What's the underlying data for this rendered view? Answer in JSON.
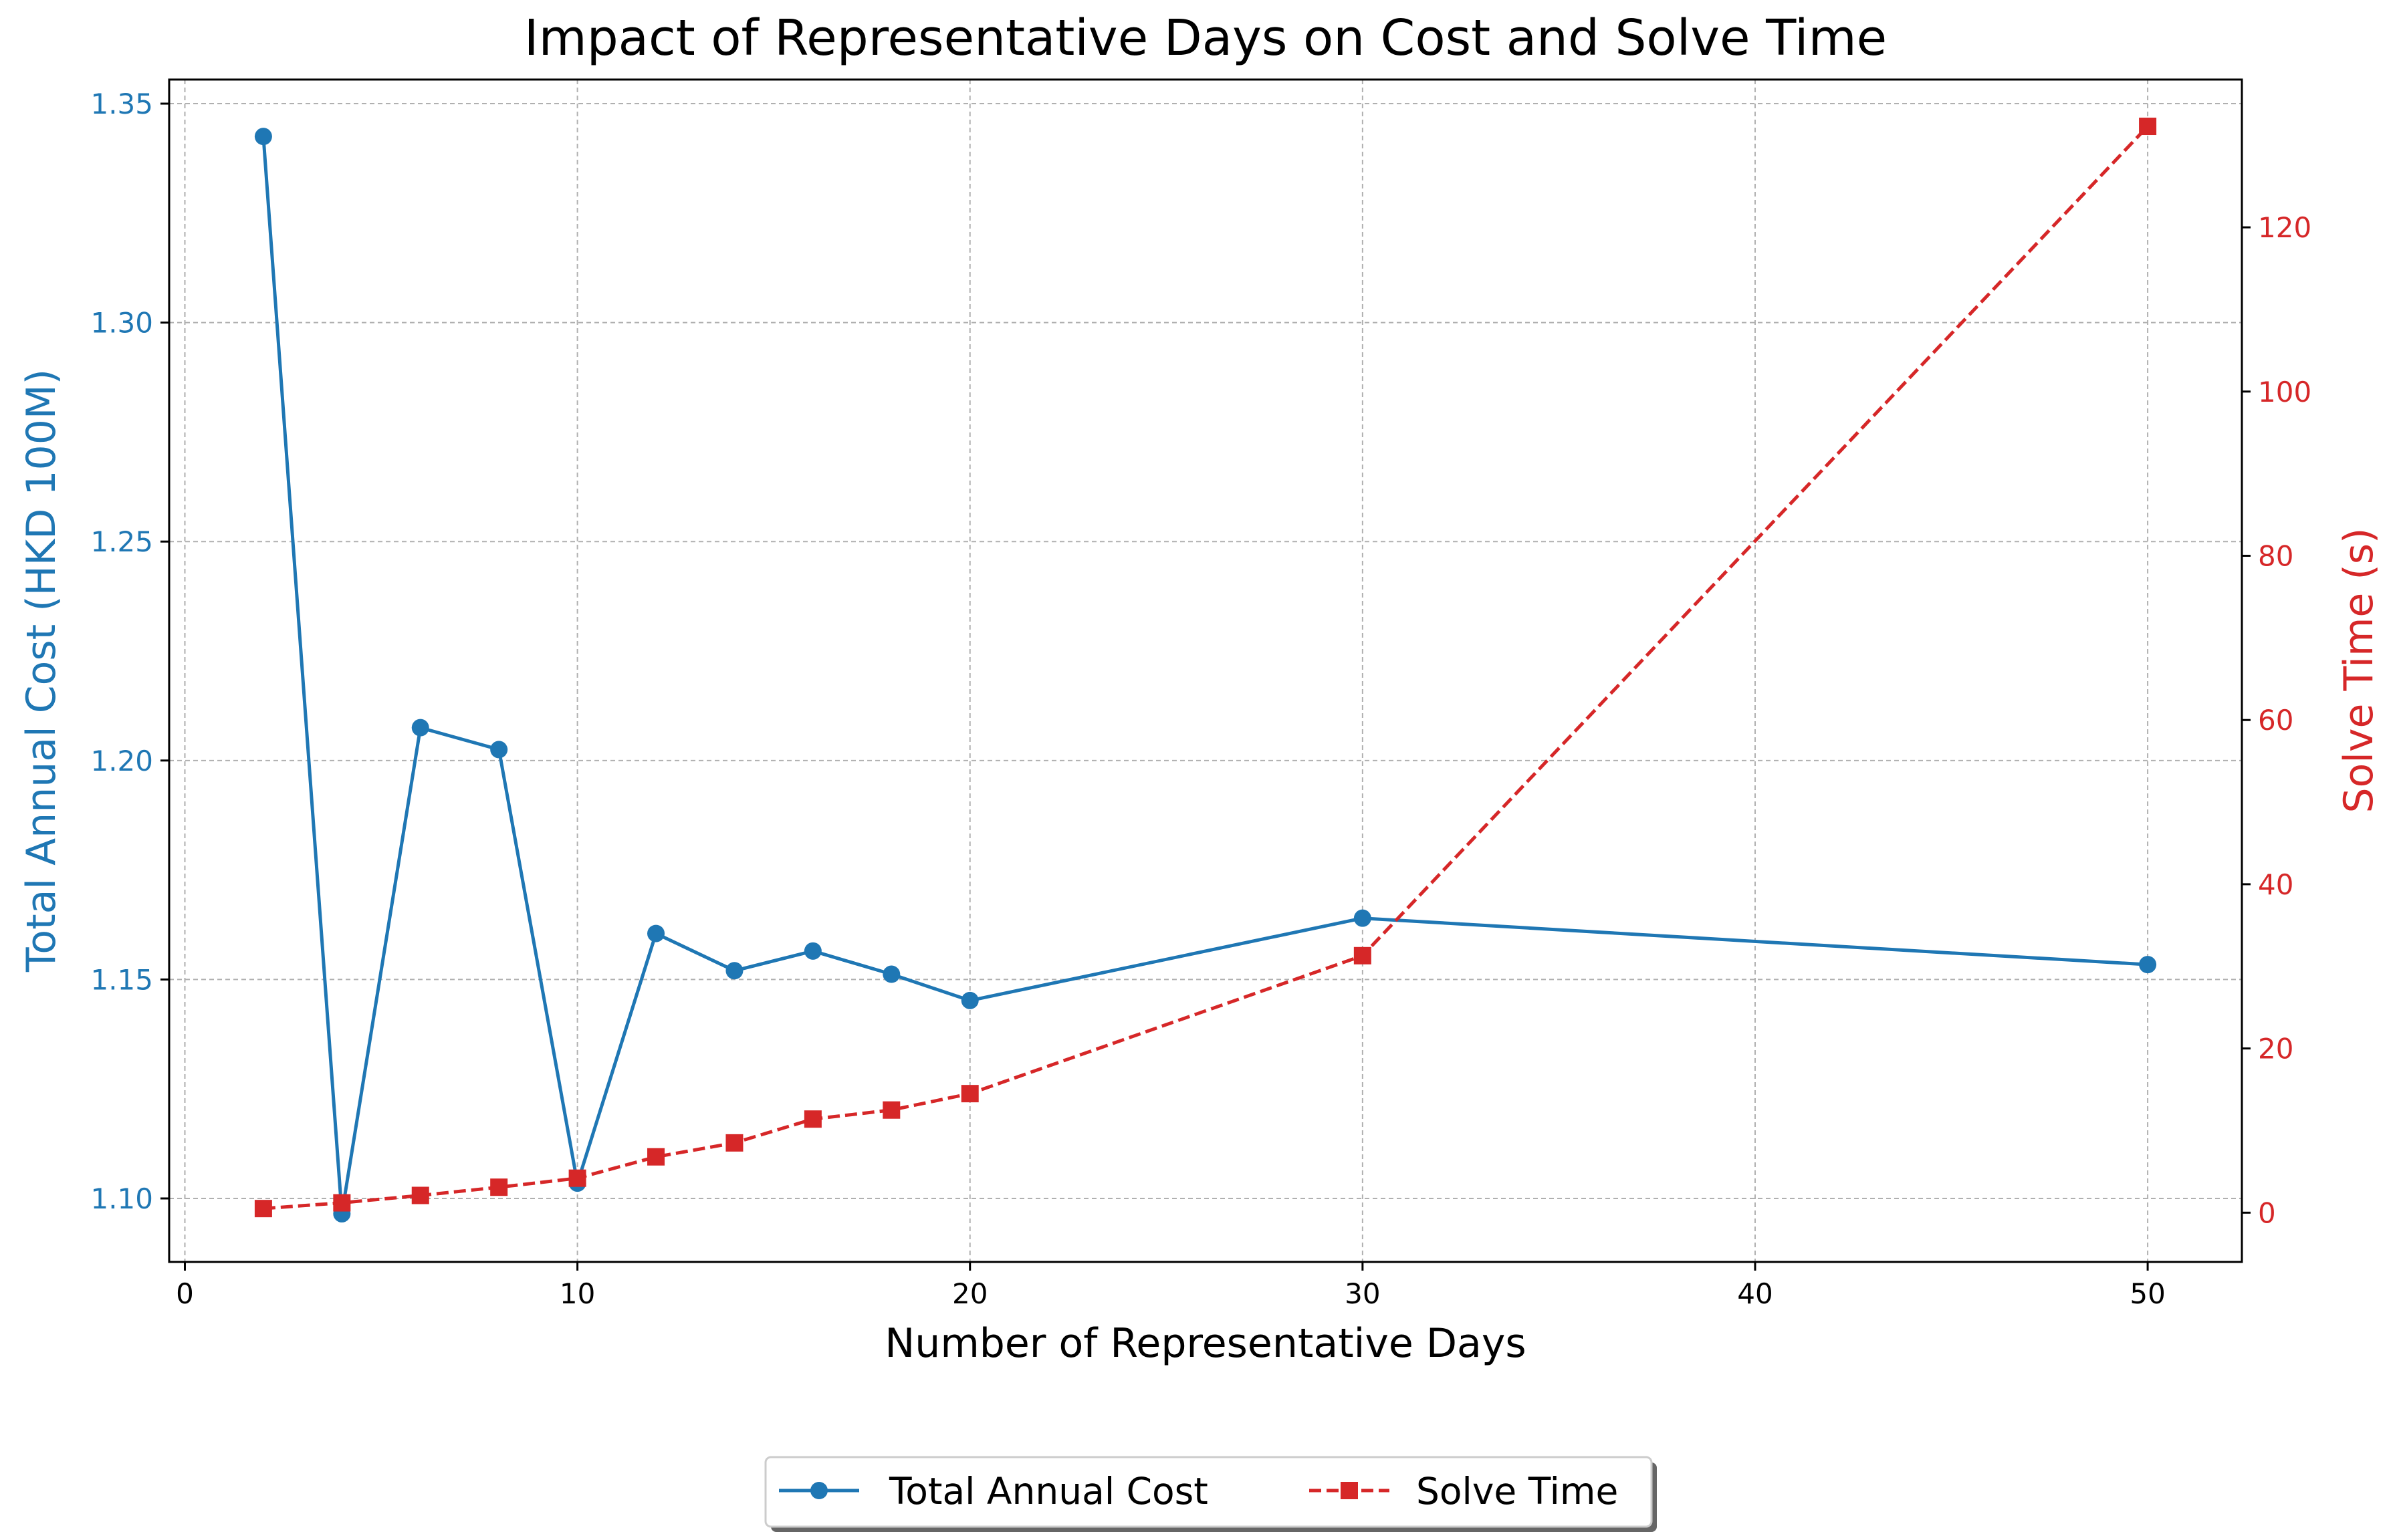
{
  "chart_data": {
    "type": "line",
    "title": "Impact of Representative Days on Cost and Solve Time",
    "xlabel": "Number of Representative Days",
    "ylabel_left": "Total Annual Cost (HKD 100M)",
    "ylabel_right": "Solve Time (s)",
    "xlim": [
      -0.4,
      52.4
    ],
    "ylim_left": [
      1.0855,
      1.3555
    ],
    "ylim_right": [
      -6,
      138
    ],
    "xticks": [
      0,
      10,
      20,
      30,
      40,
      50
    ],
    "yticks_left": [
      1.1,
      1.15,
      1.2,
      1.25,
      1.3,
      1.35
    ],
    "yticks_right": [
      0,
      20,
      40,
      60,
      80,
      100,
      120
    ],
    "grid": true,
    "legend_position": "bottom-center",
    "colors": {
      "cost": "#1f77b4",
      "time": "#d62728",
      "grid": "#b0b0b0"
    },
    "series": [
      {
        "name": "Total Annual Cost",
        "axis": "left",
        "marker": "circle",
        "linestyle": "solid",
        "x": [
          2,
          4,
          6,
          8,
          10,
          12,
          14,
          16,
          18,
          20,
          30,
          50
        ],
        "values": [
          1.3425,
          1.0965,
          1.2075,
          1.2025,
          1.1035,
          1.1605,
          1.152,
          1.1565,
          1.1512,
          1.1452,
          1.164,
          1.1534
        ]
      },
      {
        "name": "Solve Time",
        "axis": "right",
        "marker": "square",
        "linestyle": "dashed",
        "x": [
          2,
          4,
          6,
          8,
          10,
          12,
          14,
          16,
          18,
          20,
          30,
          50
        ],
        "values": [
          0.5,
          1.2,
          2.1,
          3.1,
          4.2,
          6.8,
          8.5,
          11.4,
          12.5,
          14.5,
          31.3,
          132.3
        ]
      }
    ]
  }
}
